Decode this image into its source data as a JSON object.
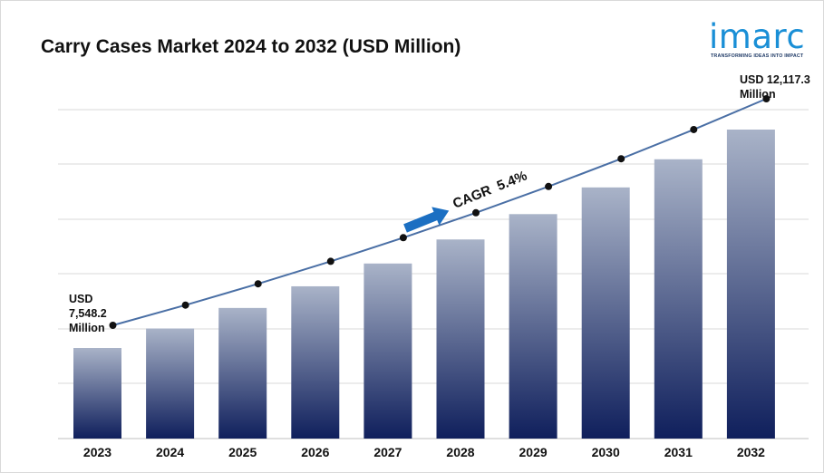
{
  "header": {
    "title": "Carry Cases Market 2024 to 2032 (USD Million)"
  },
  "logo": {
    "wordmark": "imarc",
    "tagline": "TRANSFORMING IDEAS INTO IMPACT",
    "color": "#1a8fd6"
  },
  "chart_data": {
    "type": "bar",
    "title": "Carry Cases Market 2024 to 2032 (USD Million)",
    "categories": [
      "2023",
      "2024",
      "2025",
      "2026",
      "2027",
      "2028",
      "2029",
      "2030",
      "2031",
      "2032"
    ],
    "series": [
      {
        "values": [
          7548.2,
          7955.6,
          8385.2,
          8838.0,
          9315.3,
          9818.3,
          10348.5,
          10907.3,
          11496.3,
          12117.3
        ]
      }
    ],
    "line_overlay": true,
    "grid": true,
    "legend": "none",
    "bar_color_top": "#a9b3c8",
    "bar_color_bottom": "#0f1f5c",
    "line_color": "#4a6fa5",
    "annotations": {
      "start_label": [
        "USD",
        "7,548.2",
        "Million"
      ],
      "end_label": [
        "USD 12,117.3",
        "Million"
      ],
      "cagr_label": "CAGR  5.4%"
    }
  }
}
